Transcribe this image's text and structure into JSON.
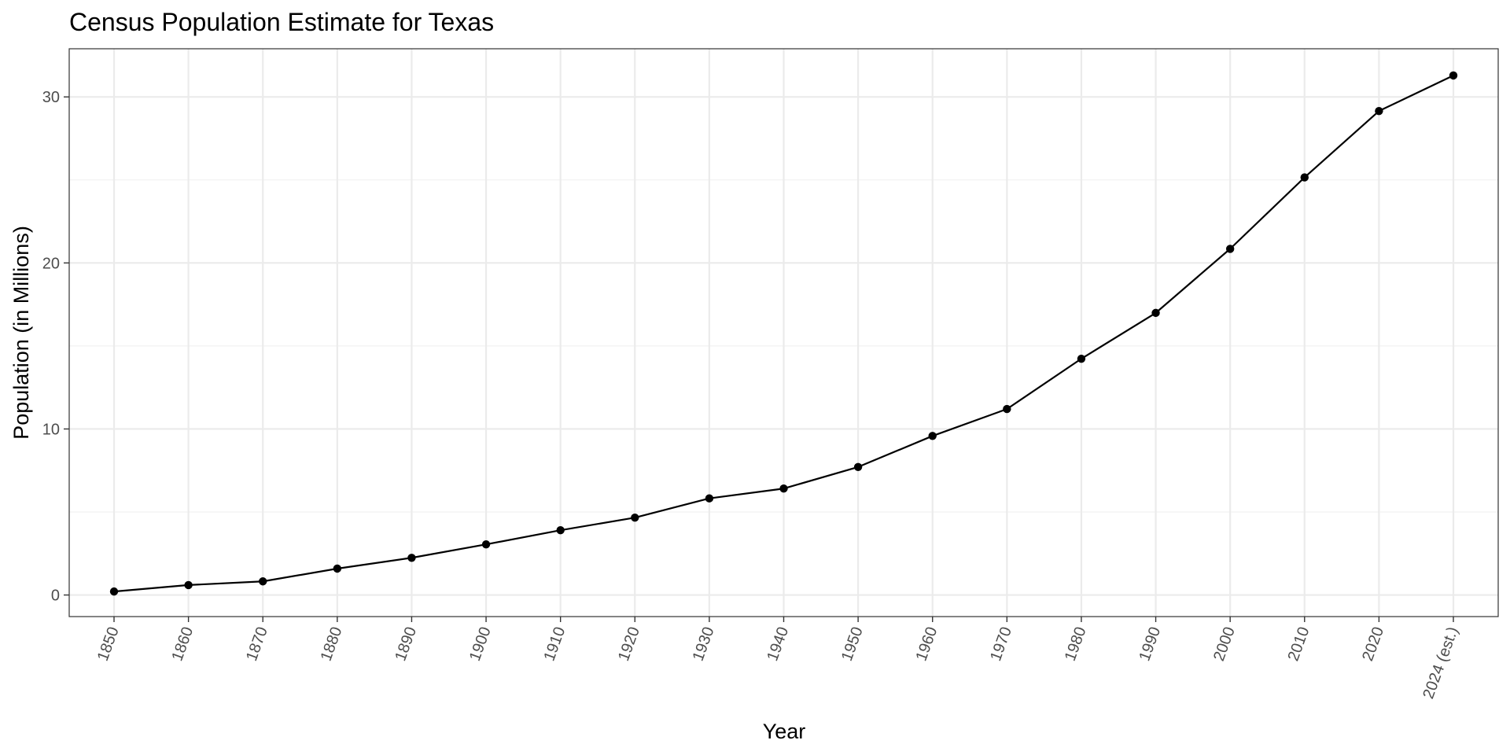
{
  "chart_data": {
    "type": "line",
    "title": "Census Population Estimate for Texas",
    "xlabel": "Year",
    "ylabel": "Population (in Millions)",
    "categories": [
      "1850",
      "1860",
      "1870",
      "1880",
      "1890",
      "1900",
      "1910",
      "1920",
      "1930",
      "1940",
      "1950",
      "1960",
      "1970",
      "1980",
      "1990",
      "2000",
      "2010",
      "2020",
      "2024 (est.)"
    ],
    "values": [
      0.21,
      0.6,
      0.82,
      1.59,
      2.24,
      3.05,
      3.9,
      4.66,
      5.82,
      6.41,
      7.71,
      9.58,
      11.2,
      14.23,
      16.99,
      20.85,
      25.15,
      29.15,
      31.29
    ],
    "yticks": [
      0,
      10,
      20,
      30
    ],
    "ylim": [
      -1.3,
      32.9
    ],
    "grid": true,
    "legend": "none",
    "colors": {
      "line": "#000000",
      "point": "#000000",
      "panel_border": "#333333",
      "grid_major": "#ebebeb",
      "grid_minor": "#f2f2f2",
      "tick_text": "#4d4d4d"
    }
  }
}
